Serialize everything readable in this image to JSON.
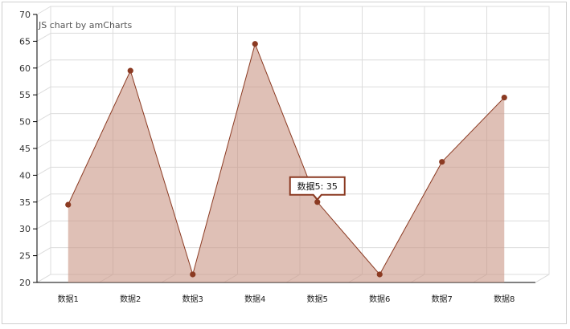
{
  "chart_data": {
    "type": "area",
    "title": "",
    "credit": "JS chart by amCharts",
    "xlabel": "",
    "ylabel": "",
    "categories": [
      "数据1",
      "数据2",
      "数据3",
      "数据4",
      "数据5",
      "数据6",
      "数据7",
      "数据8"
    ],
    "series": [
      {
        "values": [
          34.5,
          59.5,
          21.5,
          64.5,
          35,
          21.5,
          42.5,
          54.5
        ]
      }
    ],
    "ylim": [
      20,
      70
    ],
    "yticks": [
      20,
      25,
      30,
      35,
      40,
      45,
      50,
      55,
      60,
      65,
      70
    ],
    "grid": true,
    "colors": {
      "line": "#8b3a22",
      "fill": "#c99686",
      "point": "#8b3a22"
    },
    "tooltip": {
      "category_index": 4,
      "text": "数据5: 35"
    }
  }
}
